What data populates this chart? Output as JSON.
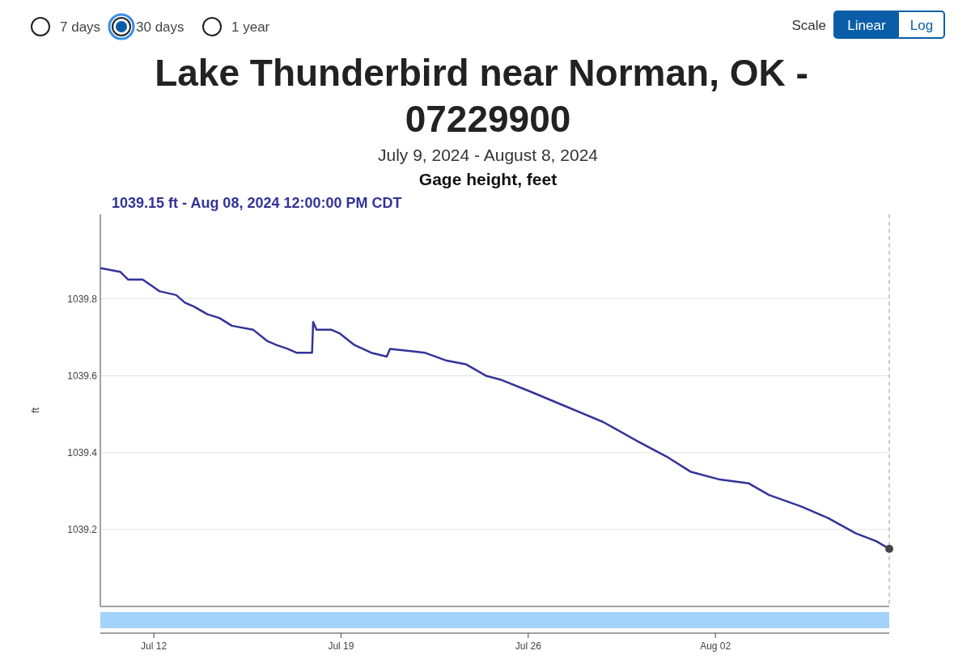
{
  "chart_data": {
    "type": "line",
    "title": "Lake Thunderbird near Norman, OK - 07229900",
    "subtitle": "July 9, 2024 - August 8, 2024",
    "ylabel": "ft",
    "annotations": [
      "7 days",
      "30 days",
      "1 year",
      "Scale",
      "Linear",
      "Log",
      "Gage height, feet",
      "1039.15 ft - Aug 08, 2024 12:00:00 PM CDT"
    ],
    "xlim": [
      "2024-07-10T00:00",
      "2024-08-08T12:00"
    ],
    "xticks": [
      {
        "value": "2024-07-12",
        "label": "Jul 12"
      },
      {
        "value": "2024-07-19",
        "label": "Jul 19"
      },
      {
        "value": "2024-07-26",
        "label": "Jul 26"
      },
      {
        "value": "2024-08-02",
        "label": "Aug 02"
      }
    ],
    "ylim": [
      1039.0,
      1040.02
    ],
    "yticks": [
      1039.2,
      1039.4,
      1039.6,
      1039.8
    ],
    "grid": "y",
    "ref_lines": [
      {
        "axis": "x",
        "value": "2024-08-08T12:00",
        "label": null,
        "color": "#999999",
        "line_style": "dashed"
      }
    ],
    "series": [
      {
        "color": "#333399",
        "marker": "none",
        "x": [
          "2024-07-10T00:00",
          "2024-07-10T18:00",
          "2024-07-11T01:00",
          "2024-07-11T14:00",
          "2024-07-12T00:00",
          "2024-07-12T05:00",
          "2024-07-12T20:00",
          "2024-07-13T04:00",
          "2024-07-13T12:00",
          "2024-07-14T00:00",
          "2024-07-14T11:00",
          "2024-07-14T22:00",
          "2024-07-15T17:00",
          "2024-07-16T06:00",
          "2024-07-16T14:00",
          "2024-07-17T00:00",
          "2024-07-17T08:00",
          "2024-07-17T22:00",
          "2024-07-17T23:00",
          "2024-07-18T02:00",
          "2024-07-18T15:00",
          "2024-07-18T23:00",
          "2024-07-19T12:00",
          "2024-07-20T03:00",
          "2024-07-20T17:00",
          "2024-07-20T20:00",
          "2024-07-22T03:00",
          "2024-07-22T22:00",
          "2024-07-23T16:00",
          "2024-07-24T10:00",
          "2024-07-24T23:00",
          "2024-07-26T01:00",
          "2024-07-27T10:00",
          "2024-07-28T19:00",
          "2024-07-30T02:00",
          "2024-07-31T04:00",
          "2024-08-01T02:00",
          "2024-08-02T04:00",
          "2024-08-03T06:00",
          "2024-08-04T00:00",
          "2024-08-05T05:00",
          "2024-08-06T05:00",
          "2024-08-07T06:00",
          "2024-08-08T00:00",
          "2024-08-08T12:00"
        ],
        "values": [
          1039.88,
          1039.87,
          1039.85,
          1039.85,
          1039.83,
          1039.82,
          1039.81,
          1039.79,
          1039.78,
          1039.76,
          1039.75,
          1039.73,
          1039.72,
          1039.69,
          1039.68,
          1039.67,
          1039.66,
          1039.66,
          1039.74,
          1039.72,
          1039.72,
          1039.71,
          1039.68,
          1039.66,
          1039.65,
          1039.67,
          1039.66,
          1039.64,
          1039.63,
          1039.6,
          1039.59,
          1039.56,
          1039.52,
          1039.48,
          1039.43,
          1039.39,
          1039.35,
          1039.33,
          1039.32,
          1039.29,
          1039.26,
          1039.23,
          1039.19,
          1039.17,
          1039.15
        ]
      },
      {
        "type": "scatter",
        "color": "#444444",
        "marker": "circle",
        "x": [
          "2024-08-08T12:00"
        ],
        "values": [
          1039.15
        ]
      }
    ]
  }
}
